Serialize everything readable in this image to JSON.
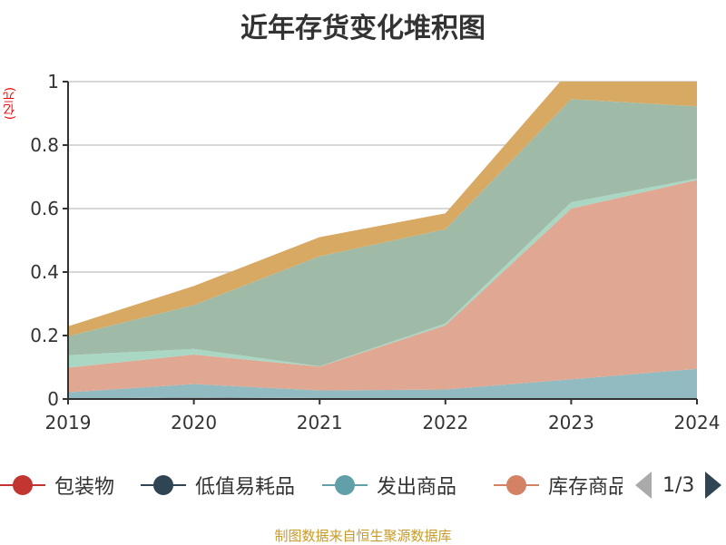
{
  "chart_data": {
    "type": "area",
    "stacked": true,
    "title": "近年存货变化堆积图",
    "ylabel": "(亿元)",
    "ylim": [
      0,
      1
    ],
    "yticks": [
      "0",
      "0.2",
      "0.4",
      "0.6",
      "0.8",
      "1"
    ],
    "categories": [
      "2019",
      "2020",
      "2021",
      "2022",
      "2023",
      "2024"
    ],
    "grid": true,
    "legend_position": "bottom",
    "legend_page": "1/3",
    "series": [
      {
        "name": "包装物",
        "color": "#c23531",
        "fill": "#c23531",
        "values": [
          0,
          0,
          0,
          0,
          0,
          0
        ]
      },
      {
        "name": "低值易耗品",
        "color": "#2f4554",
        "fill": "#8a8f9a",
        "values": [
          0.001,
          0.005,
          0.003,
          0.002,
          0.002,
          0.002
        ]
      },
      {
        "name": "发出商品",
        "color": "#61a0a8",
        "fill": "#91bbc0",
        "values": [
          0.02,
          0.042,
          0.024,
          0.028,
          0.06,
          0.093
        ]
      },
      {
        "name": "库存商品",
        "color": "#d48265",
        "fill": "#e0a792",
        "values": [
          0.078,
          0.093,
          0.075,
          0.202,
          0.538,
          0.595
        ]
      },
      {
        "color": "#91c7ae",
        "fill": "#a9d7c4",
        "values": [
          0.039,
          0.018,
          0.001,
          0.006,
          0.02,
          0.005
        ]
      },
      {
        "color": "#749f83",
        "fill": "#9fbba8",
        "values": [
          0.06,
          0.138,
          0.347,
          0.297,
          0.325,
          0.227
        ]
      },
      {
        "color": "#ca8622",
        "fill": "#d8a963",
        "values": [
          0.031,
          0.06,
          0.06,
          0.05,
          0.095,
          0.08
        ]
      }
    ]
  },
  "source": "制图数据来自恒生聚源数据库"
}
